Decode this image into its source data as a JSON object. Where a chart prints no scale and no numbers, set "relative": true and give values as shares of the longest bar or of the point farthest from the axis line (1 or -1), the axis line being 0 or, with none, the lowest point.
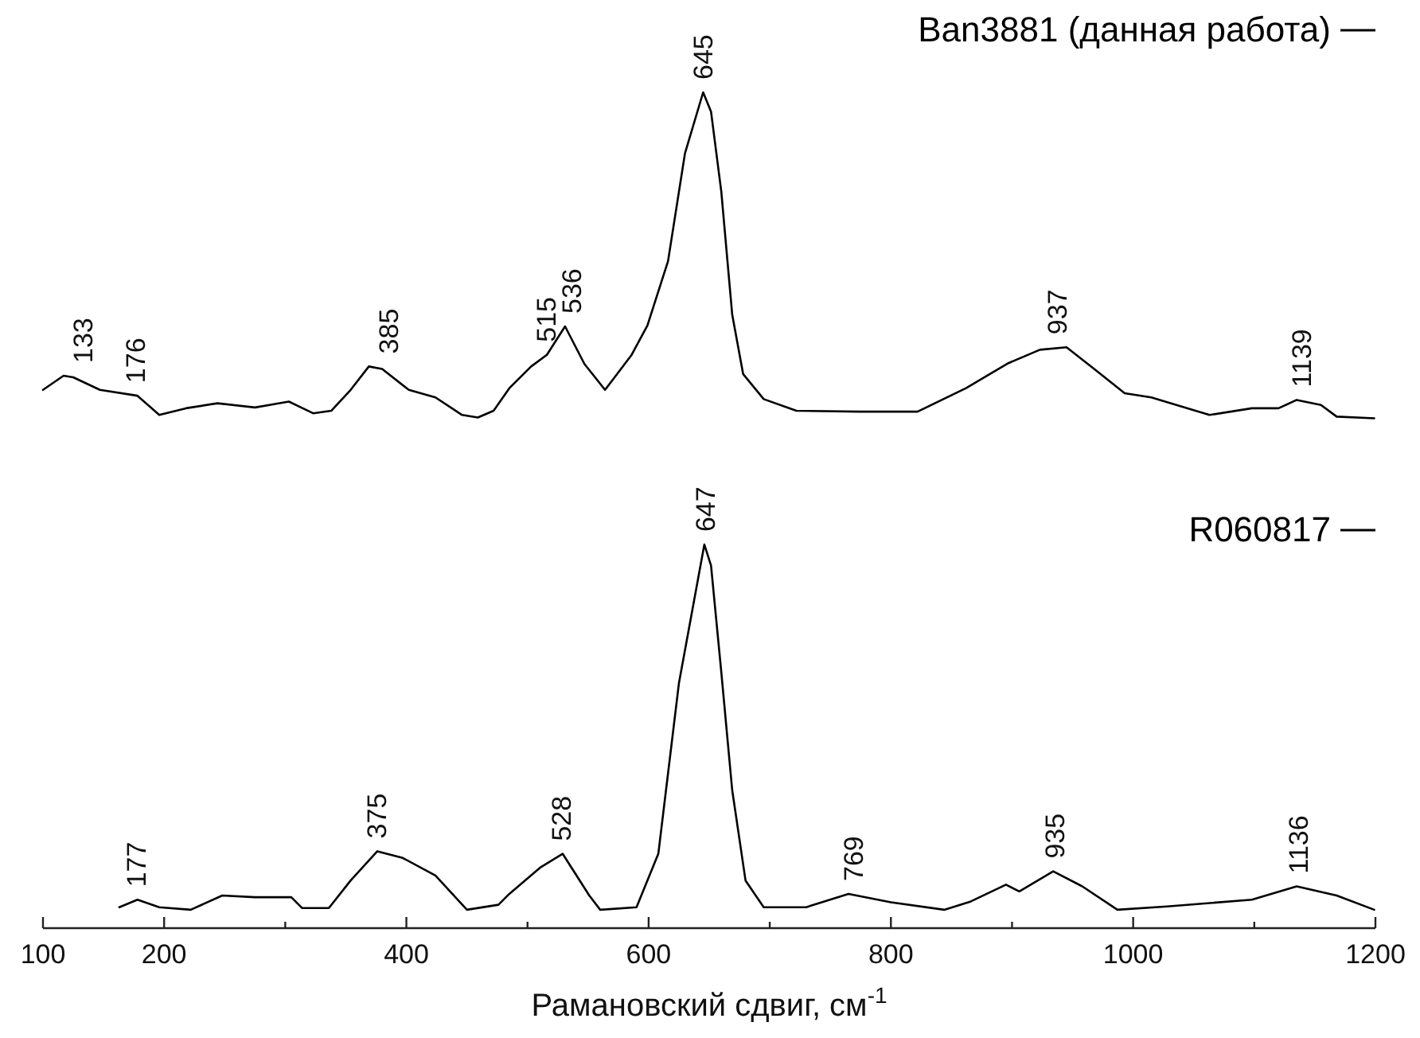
{
  "chart_data": {
    "type": "line",
    "relative": true,
    "xlabel": "Рамановский сдвиг, см$^{-1}$",
    "xlim": [
      100,
      1200
    ],
    "xticks": [
      100,
      200,
      {
        "value": 300,
        "label": null
      },
      400,
      {
        "value": 500,
        "label": null
      },
      600,
      {
        "value": 700,
        "label": null
      },
      800,
      {
        "value": 900,
        "label": null
      },
      1000,
      {
        "value": 1100,
        "label": null
      },
      1200
    ],
    "grid": false,
    "legend": "top right",
    "marker": "none",
    "line_style": "solid",
    "series": [
      {
        "name": "Ban3881 (данная работа)",
        "color": "#000000",
        "x": [
          100,
          117,
          125,
          147,
          178,
          196,
          218,
          244,
          275,
          303,
          323,
          338,
          354,
          369,
          380,
          402,
          424,
          446,
          459,
          472,
          485,
          503,
          516,
          531,
          547,
          564,
          586,
          599,
          616,
          630,
          645,
          651.5,
          660,
          669,
          678,
          695,
          722,
          774,
          822,
          862,
          897,
          923,
          945,
          967,
          993,
          1015,
          1063,
          1098,
          1120,
          1135,
          1155,
          1168,
          1199
        ],
        "values": [
          0.644,
          0.661,
          0.659,
          0.644,
          0.637,
          0.614,
          0.622,
          0.628,
          0.623,
          0.63,
          0.616,
          0.619,
          0.644,
          0.672,
          0.669,
          0.644,
          0.635,
          0.614,
          0.611,
          0.619,
          0.646,
          0.672,
          0.686,
          0.72,
          0.675,
          0.644,
          0.686,
          0.721,
          0.798,
          0.927,
          1.0,
          0.977,
          0.881,
          0.734,
          0.663,
          0.633,
          0.619,
          0.618,
          0.618,
          0.646,
          0.676,
          0.692,
          0.695,
          0.67,
          0.64,
          0.635,
          0.614,
          0.622,
          0.622,
          0.632,
          0.626,
          0.612,
          0.61
        ]
      },
      {
        "name": "R060817",
        "color": "#000000",
        "x": [
          163,
          178,
          196,
          222,
          248,
          275,
          305,
          314,
          336,
          354,
          376,
          397,
          424,
          450,
          476,
          485,
          511,
          529,
          551,
          560,
          590,
          608,
          625,
          646,
          651.5,
          660,
          669,
          680,
          695,
          730,
          765,
          800,
          844,
          866,
          895,
          906,
          934,
          958,
          987,
          1028,
          1098,
          1135,
          1168,
          1199
        ],
        "values": [
          0.025,
          0.034,
          0.025,
          0.022,
          0.039,
          0.037,
          0.037,
          0.024,
          0.024,
          0.057,
          0.092,
          0.084,
          0.063,
          0.022,
          0.028,
          0.041,
          0.073,
          0.089,
          0.039,
          0.022,
          0.025,
          0.089,
          0.293,
          0.459,
          0.434,
          0.306,
          0.165,
          0.057,
          0.025,
          0.025,
          0.041,
          0.031,
          0.022,
          0.032,
          0.052,
          0.044,
          0.068,
          0.05,
          0.022,
          0.026,
          0.034,
          0.05,
          0.039,
          0.022
        ]
      }
    ],
    "annotations": [
      {
        "text": "133",
        "x": 133,
        "y": 0.661
      },
      {
        "text": "176",
        "x": 176,
        "y": 0.637
      },
      {
        "text": "385",
        "x": 385,
        "y": 0.672
      },
      {
        "text": "515",
        "x": 515,
        "y": 0.686
      },
      {
        "text": "536",
        "x": 536,
        "y": 0.72
      },
      {
        "text": "645",
        "x": 645,
        "y": 1.0
      },
      {
        "text": "937",
        "x": 937,
        "y": 0.695
      },
      {
        "text": "1139",
        "x": 1139,
        "y": 0.632
      },
      {
        "text": "177",
        "x": 177,
        "y": 0.034
      },
      {
        "text": "375",
        "x": 375,
        "y": 0.092
      },
      {
        "text": "528",
        "x": 528,
        "y": 0.089
      },
      {
        "text": "647",
        "x": 647,
        "y": 0.459
      },
      {
        "text": "769",
        "x": 769,
        "y": 0.041
      },
      {
        "text": "935",
        "x": 935,
        "y": 0.068
      },
      {
        "text": "1136",
        "x": 1136,
        "y": 0.05
      }
    ]
  }
}
